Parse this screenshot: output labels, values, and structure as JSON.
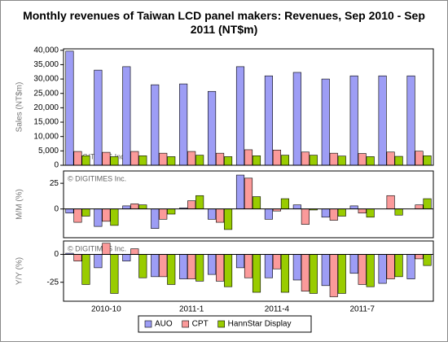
{
  "chart_data": [
    {
      "type": "bar",
      "title": "Monthly revenues of Taiwan LCD panel makers: Revenues, Sep 2010 - Sep 2011 (NT$m)",
      "y_label": "Sales (NT$m)",
      "watermark": "© DIGITIMES Inc.",
      "ylim": [
        0,
        40500
      ],
      "yticks": [
        0,
        {
          "value": 5000,
          "label": "5,000"
        },
        {
          "value": 10000,
          "label": "10,000"
        },
        {
          "value": 15000,
          "label": "15,000"
        },
        {
          "value": 20000,
          "label": "20,000"
        },
        {
          "value": 25000,
          "label": "25,000"
        },
        {
          "value": 30000,
          "label": "30,000"
        },
        {
          "value": 35000,
          "label": "35,000"
        },
        {
          "value": 40000,
          "label": "40,000"
        }
      ],
      "series": [
        {
          "color": "#9d9df5",
          "values": [
            39700,
            33100,
            34300,
            28000,
            28300,
            25700,
            34300,
            31100,
            32300,
            30000,
            31100,
            31100,
            31100
          ]
        },
        {
          "color": "#fb9a9a",
          "values": [
            4800,
            4500,
            4800,
            4200,
            4800,
            4200,
            5400,
            5300,
            4600,
            4200,
            4100,
            4600,
            4900
          ]
        },
        {
          "color": "#99cc00",
          "values": [
            3300,
            3000,
            3300,
            3000,
            3500,
            3000,
            3300,
            3500,
            3500,
            3200,
            3000,
            3100,
            3300
          ]
        }
      ]
    },
    {
      "type": "bar",
      "y_label": "M/M (%)",
      "watermark": "© DIGITIMES Inc.",
      "ylim": [
        -28,
        37
      ],
      "yticks": [
        0,
        25
      ],
      "series": [
        {
          "color": "#9d9df5",
          "values": [
            -4,
            -17,
            3,
            -19,
            1,
            -10,
            33,
            -10,
            4,
            -8,
            3,
            0,
            0
          ]
        },
        {
          "color": "#fb9a9a",
          "values": [
            -13,
            -12,
            5,
            -10,
            8,
            -13,
            30,
            -2,
            -15,
            -11,
            -4,
            13,
            4
          ]
        },
        {
          "color": "#99cc00",
          "values": [
            -7,
            -16,
            4,
            -5,
            13,
            -20,
            12,
            10,
            -1,
            -7,
            -8,
            -6,
            10
          ]
        }
      ]
    },
    {
      "type": "bar",
      "y_label": "Y/Y (%)",
      "watermark": "© DIGITIMES Inc.",
      "ylim": [
        -42,
        12
      ],
      "yticks": [
        -25,
        0
      ],
      "categories": [
        null,
        "2010-10",
        null,
        null,
        "2011-1",
        null,
        null,
        "2011-4",
        null,
        null,
        "2011-7",
        null,
        null
      ],
      "series": [
        {
          "name": "AUO",
          "color": "#9d9df5",
          "values": [
            1,
            -12,
            -6,
            -20,
            -22,
            -18,
            -12,
            -21,
            -23,
            -28,
            -17,
            -26,
            -22
          ]
        },
        {
          "name": "CPT",
          "color": "#fb9a9a",
          "values": [
            -6,
            10,
            5,
            -20,
            -22,
            -24,
            -21,
            -13,
            -33,
            -38,
            -27,
            -22,
            -4
          ]
        },
        {
          "name": "HannStar Display",
          "color": "#99cc00",
          "values": [
            -27,
            -35,
            -21,
            -27,
            -24,
            -29,
            -34,
            -34,
            -35,
            -35,
            -29,
            -20,
            -10
          ]
        }
      ]
    }
  ]
}
